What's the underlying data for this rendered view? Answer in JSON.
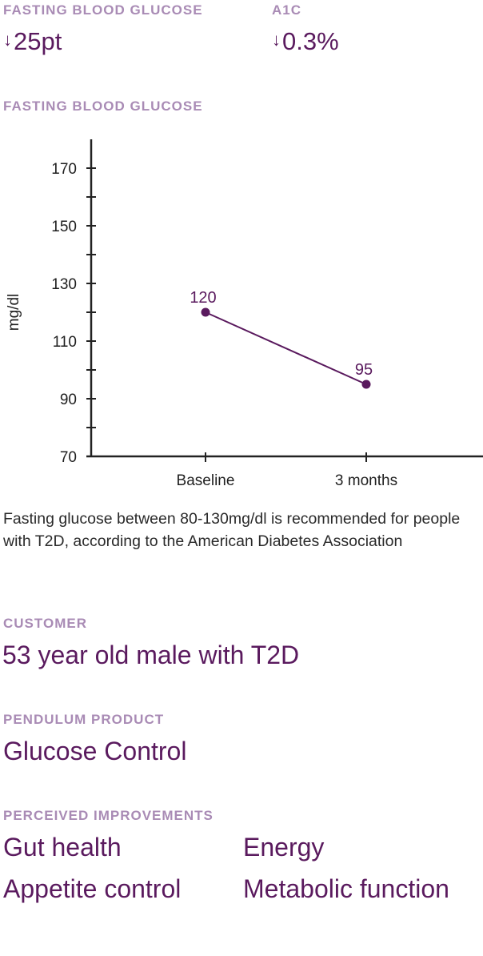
{
  "stats": [
    {
      "label": "Fasting Blood Glucose",
      "arrow": "↓",
      "value": "25pt"
    },
    {
      "label": "A1C",
      "arrow": "↓",
      "value": "0.3%"
    }
  ],
  "chart_title": "Fasting Blood Glucose",
  "chart_data": {
    "type": "line",
    "title": "Fasting Blood Glucose",
    "xlabel": "",
    "ylabel": "mg/dl",
    "categories": [
      "Baseline",
      "3 months"
    ],
    "series": [
      {
        "name": "Fasting Blood Glucose",
        "values": [
          120,
          95
        ]
      }
    ],
    "data_labels": [
      "120",
      "95"
    ],
    "y_ticks": [
      "70",
      "90",
      "110",
      "130",
      "150",
      "170"
    ],
    "ylim": [
      70,
      180
    ],
    "grid": false,
    "line_color": "#5a1a5e"
  },
  "note": "Fasting glucose between 80-130mg/dl is recommended for people with T2D, according to the American Diabetes Association",
  "customer": {
    "label": "Customer",
    "value": "53 year old male with T2D"
  },
  "product": {
    "label": "Pendulum Product",
    "value": "Glucose Control"
  },
  "improvements": {
    "label": "Perceived Improvements",
    "items": [
      "Gut health",
      "Energy",
      "Appetite control",
      "Metabolic function"
    ]
  }
}
